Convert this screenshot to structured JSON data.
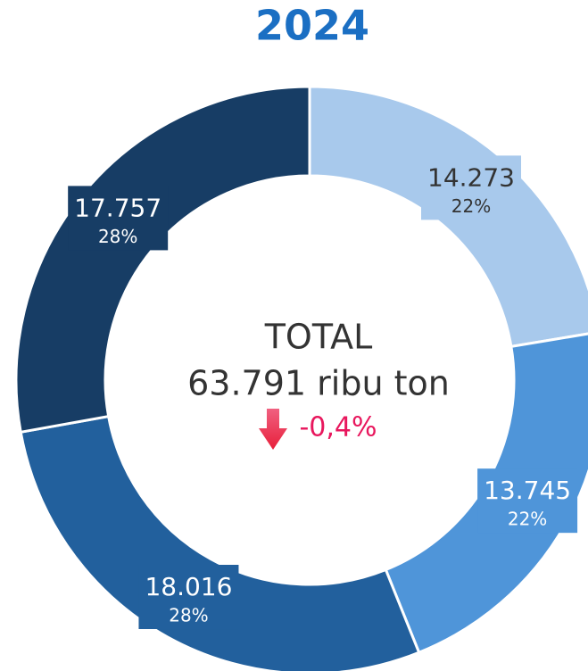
{
  "chart_data": {
    "type": "donut",
    "title": "2024",
    "categories": [
      null,
      null,
      null,
      null
    ],
    "values": [
      14273,
      13745,
      18016,
      17757
    ],
    "value_labels": [
      "14.273",
      "13.745",
      "18.016",
      "17.757"
    ],
    "percents": [
      22,
      22,
      28,
      28
    ],
    "percent_labels": [
      "22%",
      "22%",
      "28%",
      "28%"
    ],
    "colors": [
      "#a8c9ec",
      "#4f95d9",
      "#22609d",
      "#173d65"
    ],
    "center_label": "TOTAL",
    "total_label": "63.791 ribu ton",
    "change_label": "-0,4%"
  }
}
